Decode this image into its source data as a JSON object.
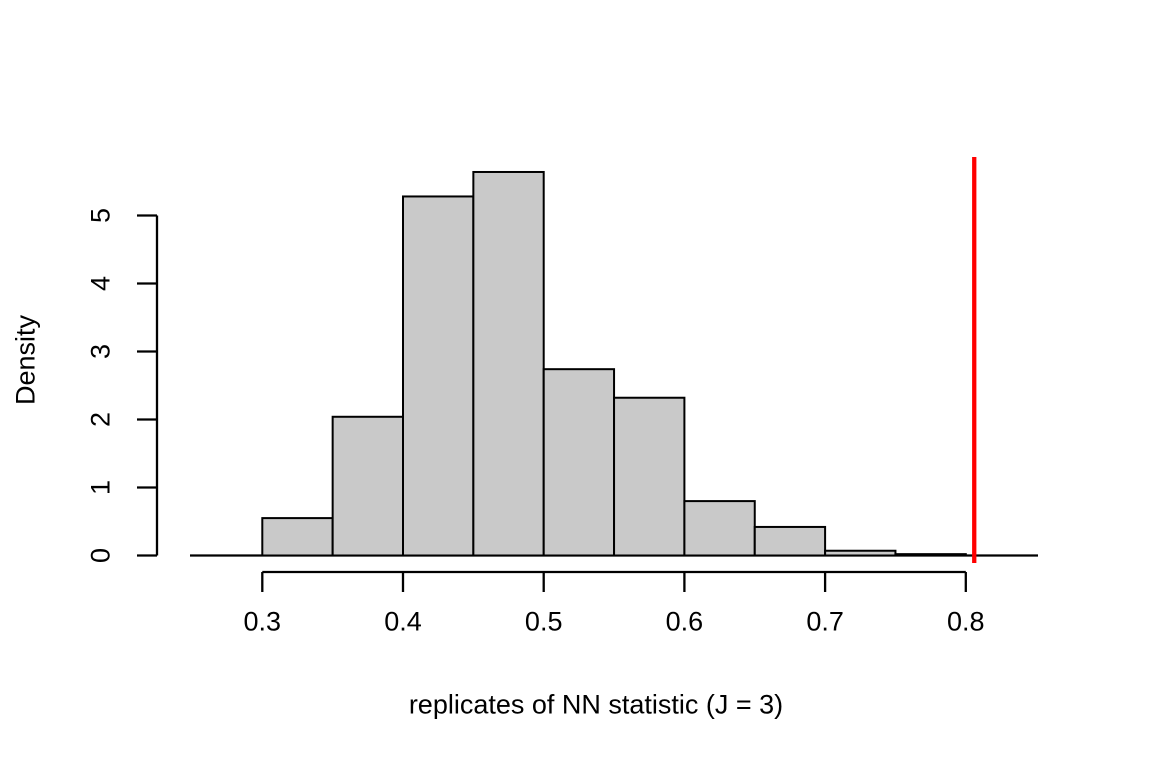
{
  "figure": {
    "background": "#FFFFFF",
    "text_color": "#000000"
  },
  "chart_data": {
    "type": "bar",
    "subtype": "histogram",
    "title": "",
    "xlabel": "replicates of NN statistic (J = 3)",
    "ylabel": "Density",
    "bin_breaks": [
      0.3,
      0.35,
      0.4,
      0.45,
      0.5,
      0.55,
      0.6,
      0.65,
      0.7,
      0.75,
      0.8
    ],
    "densities": [
      0.55,
      2.04,
      5.28,
      5.64,
      2.74,
      2.32,
      0.8,
      0.42,
      0.07,
      0.02
    ],
    "x_ticks": [
      0.3,
      0.4,
      0.5,
      0.6,
      0.7,
      0.8
    ],
    "x_tick_labels": [
      "0.3",
      "0.4",
      "0.5",
      "0.6",
      "0.7",
      "0.8"
    ],
    "y_ticks": [
      0,
      1,
      2,
      3,
      4,
      5
    ],
    "y_tick_labels": [
      "0",
      "1",
      "2",
      "3",
      "4",
      "5"
    ],
    "xlim": [
      0.249,
      0.851
    ],
    "ylim": [
      0,
      5.84
    ],
    "grid": false,
    "legend": null,
    "bar_fill": "#C9C9C9",
    "bar_stroke": "#000000",
    "axis_color": "#000000",
    "vline": {
      "x": 0.806,
      "color": "#FF0000"
    }
  }
}
